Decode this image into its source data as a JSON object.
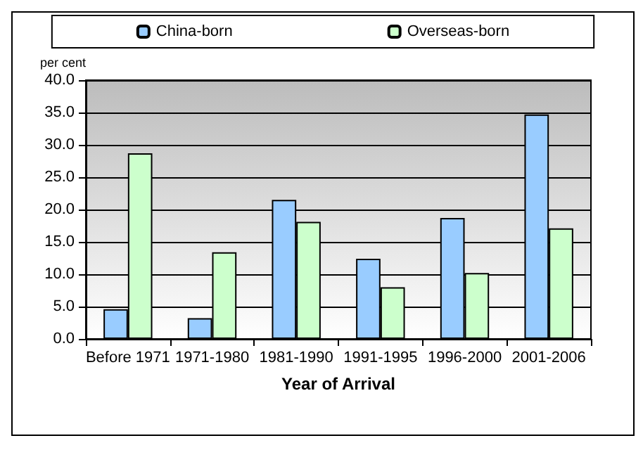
{
  "chart_data": {
    "type": "bar",
    "xlabel": "Year of Arrival",
    "ylabel": "per cent",
    "categories": [
      "Before 1971",
      "1971-1980",
      "1981-1990",
      "1991-1995",
      "1996-2000",
      "2001-2006"
    ],
    "series": [
      {
        "name": "China-born",
        "color": "#99ccff",
        "values": [
          4.6,
          3.2,
          21.5,
          12.4,
          18.7,
          34.7
        ]
      },
      {
        "name": "Overseas-born",
        "color": "#ccffcc",
        "values": [
          28.7,
          13.4,
          18.1,
          8.0,
          10.2,
          17.1
        ]
      }
    ],
    "ylim": [
      0,
      40
    ],
    "yticks": [
      {
        "value": 0,
        "label": "0.0"
      },
      {
        "value": 5,
        "label": "5.0"
      },
      {
        "value": 10,
        "label": "10.0"
      },
      {
        "value": 15,
        "label": "15.0"
      },
      {
        "value": 20,
        "label": "20.0"
      },
      {
        "value": 25,
        "label": "25.0"
      },
      {
        "value": 30,
        "label": "30.0"
      },
      {
        "value": 35,
        "label": "35.0"
      },
      {
        "value": 40,
        "label": "40.0"
      }
    ],
    "grid": "y",
    "legend": "top"
  }
}
